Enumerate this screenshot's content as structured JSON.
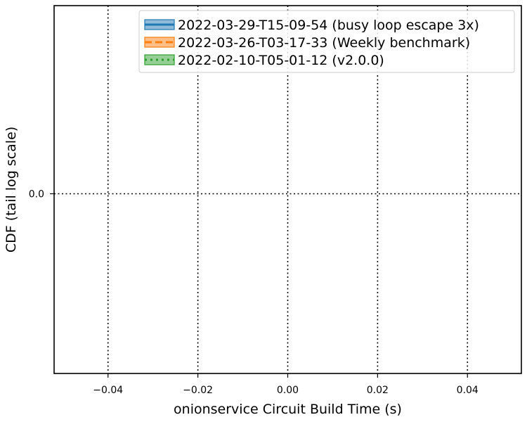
{
  "chart_data": {
    "type": "line",
    "title": "",
    "xlabel": "onionservice Circuit Build Time (s)",
    "ylabel": "CDF (tail log scale)",
    "xlim": [
      -0.052,
      0.052
    ],
    "x_ticks": [
      -0.04,
      -0.02,
      0.0,
      0.02,
      0.04
    ],
    "x_tick_labels": [
      "−0.04",
      "−0.02",
      "0.00",
      "0.02",
      "0.04"
    ],
    "y_ticks": [
      0.0
    ],
    "y_tick_labels": [
      "0.0"
    ],
    "grid": true,
    "legend_position": "upper right",
    "series": [
      {
        "name": "2022-03-29-T15-09-54 (busy loop escape 3x)",
        "color": "#1f77b4",
        "line_style": "solid",
        "x": [],
        "y": []
      },
      {
        "name": "2022-03-26-T03-17-33 (Weekly benchmark)",
        "color": "#ff7f0e",
        "line_style": "dashed",
        "x": [],
        "y": []
      },
      {
        "name": "2022-02-10-T05-01-12 (v2.0.0)",
        "color": "#2ca02c",
        "line_style": "dotted",
        "x": [],
        "y": []
      }
    ]
  }
}
